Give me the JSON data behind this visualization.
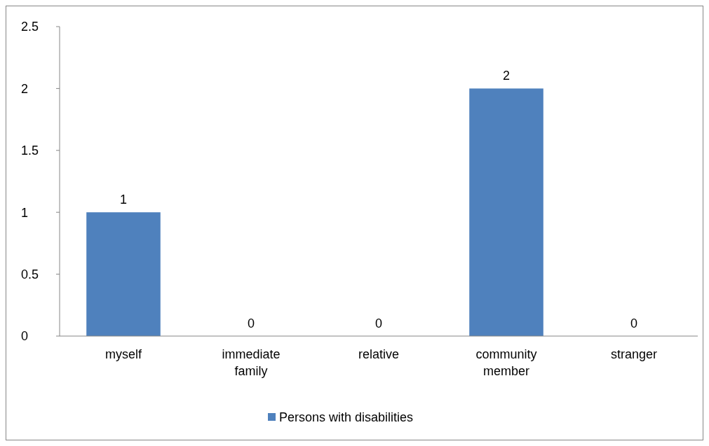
{
  "chart_data": {
    "type": "bar",
    "categories": [
      "myself",
      "immediate family",
      "relative",
      "community member",
      "stranger"
    ],
    "series": [
      {
        "name": "Persons with disabilities",
        "color": "#4f81bd",
        "values": [
          1,
          0,
          0,
          2,
          0
        ]
      }
    ],
    "ylim": [
      0,
      2.5
    ],
    "yticks": [
      0,
      0.5,
      1,
      1.5,
      2,
      2.5
    ],
    "grid": false,
    "legend": "bottom",
    "data_labels": true
  }
}
